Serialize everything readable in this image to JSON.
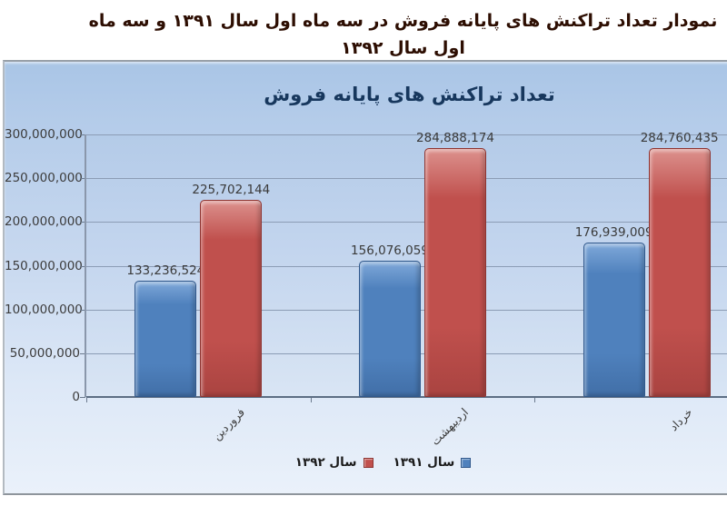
{
  "page_title": "نمودار تعداد تراکنش های پایانه فروش در سه ماه اول سال ۱۳۹۱ و سه ماه اول سال ۱۳۹۲",
  "chart_data": {
    "type": "bar",
    "title": "تعداد تراکنش های پایانه فروش",
    "categories": [
      "فروردین",
      "اردیبهشت",
      "خرداد"
    ],
    "series": [
      {
        "name": "سال ۱۳۹۱",
        "color": "#4f81bd",
        "color_light": "#7fa8d9",
        "color_dark": "#30588c",
        "values": [
          133236524,
          156076059,
          176939009
        ],
        "labels": [
          "133,236,524",
          "156,076,059",
          "176,939,009"
        ]
      },
      {
        "name": "سال ۱۳۹۲",
        "color": "#c0504d",
        "color_light": "#dc918d",
        "color_dark": "#8e3431",
        "values": [
          225702144,
          284888174,
          284760435
        ],
        "labels": [
          "225,702,144",
          "284,888,174",
          "284,760,435"
        ]
      }
    ],
    "ylim": [
      0,
      300000000
    ],
    "ytick_interval": 50000000,
    "yticks": [
      "300,000,000",
      "250,000,000",
      "200,000,000",
      "150,000,000",
      "100,000,000",
      "50,000,000",
      "0"
    ],
    "grid": true,
    "legend_position": "bottom",
    "title_color": "#17375d",
    "page_title_color": "#2d0e02"
  }
}
